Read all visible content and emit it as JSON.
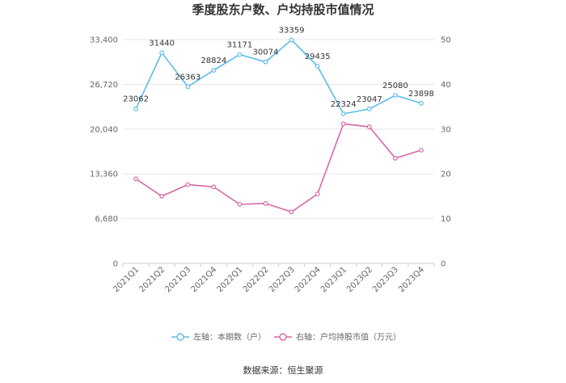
{
  "chart_data": {
    "type": "line",
    "title": "季度股东户数、户均持股市值情况",
    "categories": [
      "2021Q1",
      "2021Q2",
      "2021Q3",
      "2021Q4",
      "2022Q1",
      "2022Q2",
      "2022Q3",
      "2022Q4",
      "2023Q1",
      "2023Q2",
      "2023Q3",
      "2023Q4"
    ],
    "y_left": {
      "ticks": [
        "33,400",
        "26,720",
        "20,040",
        "13,360",
        "6,680",
        "0"
      ],
      "ylim": [
        0,
        33400
      ]
    },
    "y_right": {
      "ticks": [
        "50",
        "40",
        "30",
        "20",
        "10",
        "0"
      ],
      "ylim": [
        0,
        50
      ]
    },
    "series": [
      {
        "name": "左轴：本期数（户）",
        "axis": "left",
        "color": "#5bbcec",
        "values": [
          23062,
          31440,
          26363,
          28824,
          31171,
          30074,
          33359,
          29435,
          22324,
          23047,
          25080,
          23898
        ],
        "labels": [
          "23062",
          "31440",
          "26363",
          "28824",
          "31171",
          "30074",
          "33359",
          "29435",
          "22324",
          "23047",
          "25080",
          "23898"
        ]
      },
      {
        "name": "右轴：户均持股市值（万元）",
        "axis": "right",
        "color": "#d966a8",
        "values": [
          18.9,
          15.0,
          17.6,
          17.1,
          13.2,
          13.4,
          11.5,
          15.5,
          31.2,
          30.5,
          23.5,
          25.3
        ]
      }
    ],
    "grid": true,
    "legend_position": "bottom"
  },
  "footer": {
    "source": "数据来源：恒生聚源"
  }
}
